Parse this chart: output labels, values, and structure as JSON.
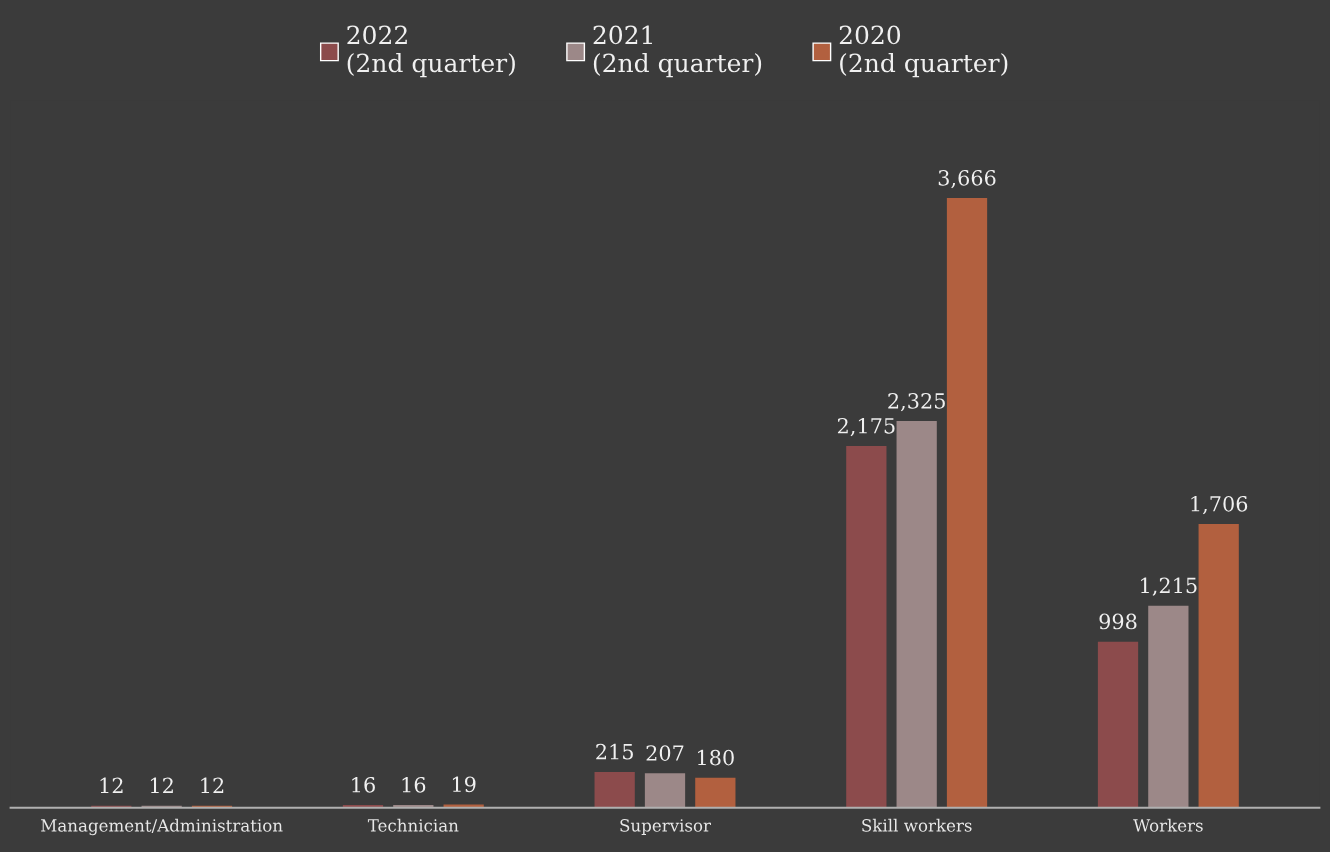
{
  "chart_data": {
    "type": "bar",
    "categories": [
      "Management/Administration",
      "Technician",
      "Supervisor",
      "Skill workers",
      "Workers"
    ],
    "series": [
      {
        "name": "2022\n(2nd quarter)",
        "color": "#8c4b4c",
        "values": [
          12,
          16,
          215,
          2175,
          998
        ],
        "value_labels": [
          "12",
          "16",
          "215",
          "2,175",
          "998"
        ]
      },
      {
        "name": "2021\n(2nd quarter)",
        "color": "#9c8888",
        "values": [
          12,
          16,
          207,
          2325,
          1215
        ],
        "value_labels": [
          "12",
          "16",
          "207",
          "2,325",
          "1,215"
        ]
      },
      {
        "name": "2020\n(2nd quarter)",
        "color": "#b2603f",
        "values": [
          12,
          19,
          180,
          3666,
          1706
        ],
        "value_labels": [
          "12",
          "19",
          "180",
          "3,666",
          "1,706"
        ]
      }
    ],
    "legend": "top",
    "grid": false
  }
}
